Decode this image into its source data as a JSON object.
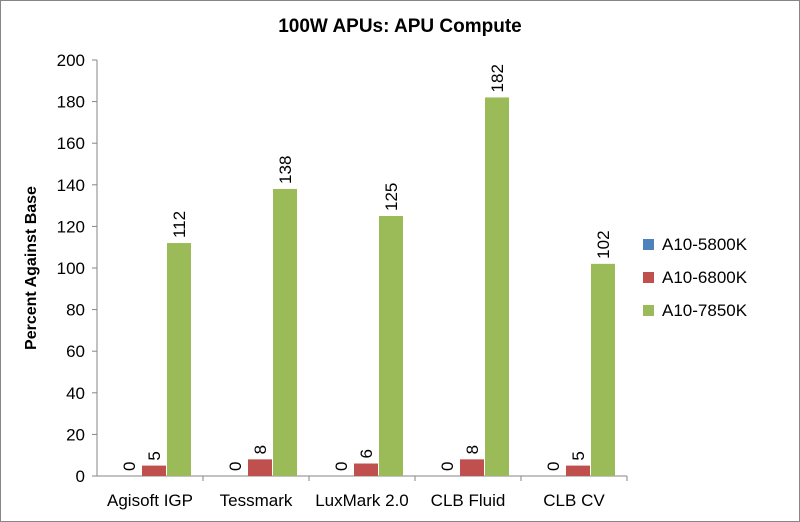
{
  "chart_data": {
    "type": "bar",
    "title": "100W APUs: APU Compute",
    "xlabel": "",
    "ylabel": "Percent Against Base",
    "ylim": [
      0,
      200
    ],
    "yticks": [
      0,
      20,
      40,
      60,
      80,
      100,
      120,
      140,
      160,
      180,
      200
    ],
    "categories": [
      "Agisoft IGP",
      "Tessmark",
      "LuxMark 2.0",
      "CLB Fluid",
      "CLB CV"
    ],
    "series": [
      {
        "name": "A10-5800K",
        "color": "#4F81BD",
        "values": [
          0,
          0,
          0,
          0,
          0
        ]
      },
      {
        "name": "A10-6800K",
        "color": "#C0504D",
        "values": [
          5,
          8,
          6,
          8,
          5
        ]
      },
      {
        "name": "A10-7850K",
        "color": "#9BBB59",
        "values": [
          112,
          138,
          125,
          182,
          102
        ]
      }
    ],
    "grid": false,
    "legend": "right"
  }
}
